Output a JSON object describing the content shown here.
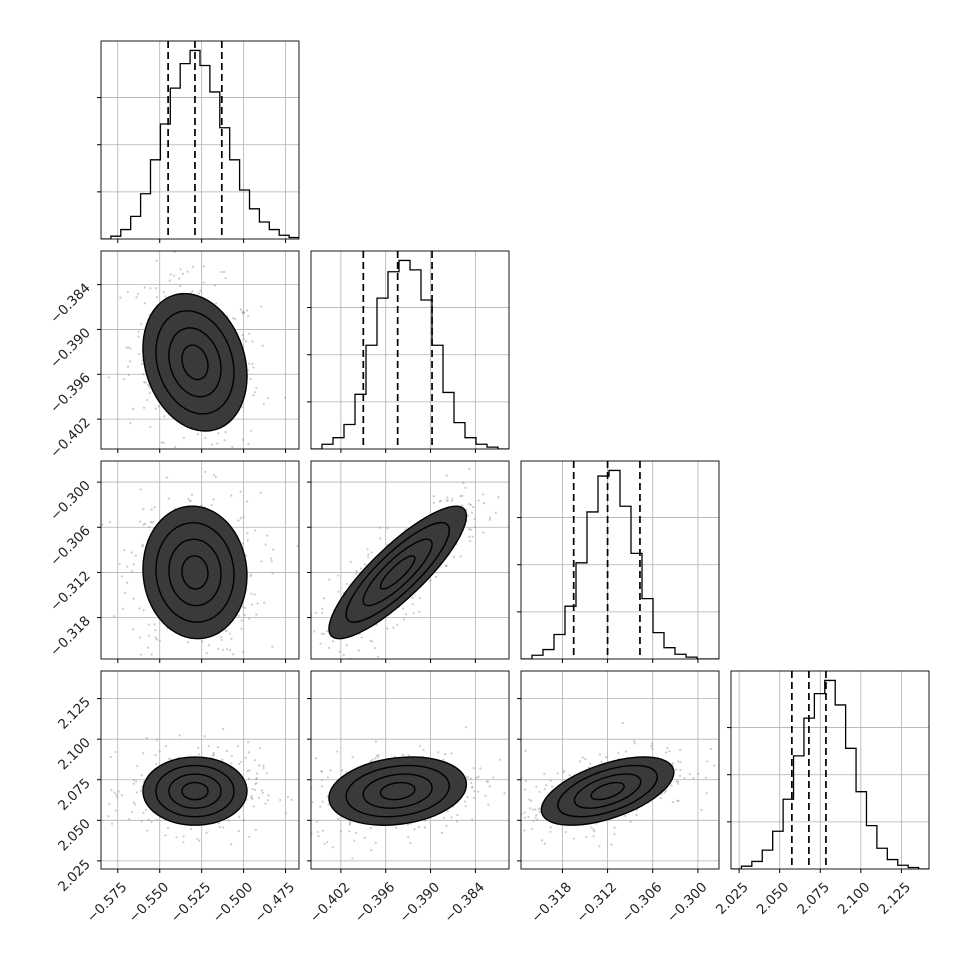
{
  "chart_data": {
    "type": "corner",
    "parameters": [
      {
        "ticks": [
          -0.575,
          -0.55,
          -0.525,
          -0.5,
          -0.475
        ],
        "tick_labels": [
          "−0.575",
          "−0.550",
          "−0.525",
          "−0.500",
          "−0.475"
        ],
        "range": [
          -0.585,
          -0.467
        ],
        "quantiles": [
          -0.545,
          -0.529,
          -0.513
        ],
        "mean": -0.529,
        "sd": 0.0155,
        "hist_bins": [
          0,
          0.015,
          0.05,
          0.12,
          0.24,
          0.42,
          0.61,
          0.8,
          0.93,
          1.0,
          0.92,
          0.78,
          0.59,
          0.42,
          0.26,
          0.16,
          0.09,
          0.05,
          0.02,
          0.008
        ]
      },
      {
        "ticks": [
          -0.402,
          -0.396,
          -0.39,
          -0.384
        ],
        "tick_labels": [
          "−0.402",
          "−0.396",
          "−0.390",
          "−0.384"
        ],
        "range": [
          -0.406,
          -0.3795
        ],
        "quantiles": [
          -0.399,
          -0.3944,
          -0.3898
        ],
        "mean": -0.3944,
        "sd": 0.0046,
        "hist_bins": [
          0,
          0.025,
          0.06,
          0.13,
          0.29,
          0.55,
          0.8,
          0.94,
          1.0,
          0.95,
          0.79,
          0.55,
          0.3,
          0.14,
          0.06,
          0.025,
          0.01,
          0
        ]
      },
      {
        "ticks": [
          -0.318,
          -0.312,
          -0.306,
          -0.3
        ],
        "tick_labels": [
          "−0.318",
          "−0.312",
          "−0.306",
          "−0.300"
        ],
        "range": [
          -0.3235,
          -0.2972
        ],
        "quantiles": [
          -0.3165,
          -0.312,
          -0.3077
        ],
        "mean": -0.312,
        "sd": 0.0044,
        "hist_bins": [
          0,
          0.02,
          0.05,
          0.13,
          0.28,
          0.51,
          0.78,
          0.97,
          1.0,
          0.81,
          0.56,
          0.32,
          0.14,
          0.06,
          0.025,
          0.01,
          0,
          0
        ]
      },
      {
        "ticks": [
          2.025,
          2.05,
          2.075,
          2.1,
          2.125
        ],
        "tick_labels": [
          "2.025",
          "2.050",
          "2.075",
          "2.100",
          "2.125"
        ],
        "range": [
          2.02,
          2.142
        ],
        "quantiles": [
          2.0575,
          2.068,
          2.0785
        ],
        "mean": 2.068,
        "sd": 0.0105,
        "hist_bins": [
          0,
          0.015,
          0.04,
          0.1,
          0.2,
          0.37,
          0.6,
          0.8,
          0.93,
          1.0,
          0.87,
          0.64,
          0.41,
          0.23,
          0.11,
          0.05,
          0.02,
          0.008,
          0
        ]
      }
    ],
    "pair_correlations": [
      {
        "x": 0,
        "y": 1,
        "r": -0.2
      },
      {
        "x": 0,
        "y": 2,
        "r": -0.05
      },
      {
        "x": 1,
        "y": 2,
        "r": 0.85
      },
      {
        "x": 0,
        "y": 3,
        "r": 0
      },
      {
        "x": 1,
        "y": 3,
        "r": 0.2
      },
      {
        "x": 2,
        "y": 3,
        "r": 0.55
      }
    ],
    "contour_levels": [
      0.5,
      1.0,
      1.5,
      2.0
    ],
    "quantile_line_style": "dashed",
    "grid": true,
    "colors": {
      "line": "#000000",
      "grid": "#b0b0b0",
      "points": "#8c8c8c",
      "axis": "#000000",
      "background": "#ffffff"
    }
  }
}
